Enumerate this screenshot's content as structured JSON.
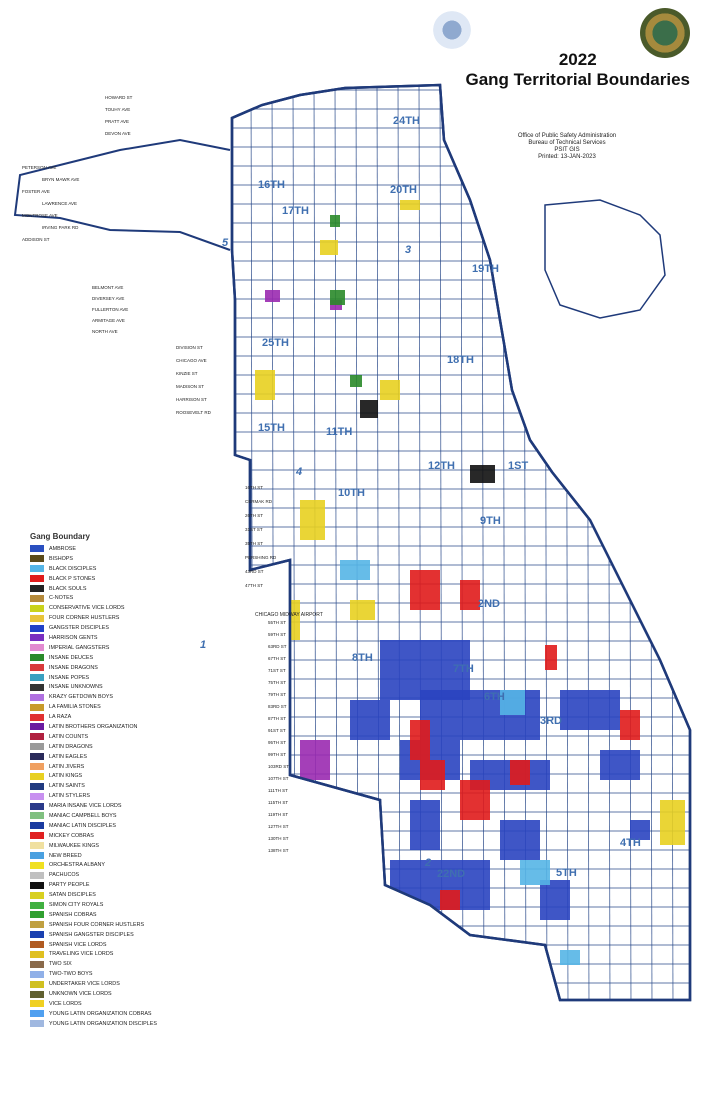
{
  "title": {
    "year": "2022",
    "name": "Gang Territorial Boundaries"
  },
  "office": [
    "Office of Public Safety Administration",
    "Bureau of Technical Services",
    "PSIT GIS",
    "Printed: 13-JAN-2023"
  ],
  "districts": [
    "24TH",
    "16TH",
    "17TH",
    "20TH",
    "19TH",
    "25TH",
    "18TH",
    "15TH",
    "11TH",
    "12TH",
    "1ST",
    "10TH",
    "9TH",
    "2ND",
    "8TH",
    "7TH",
    "6TH",
    "3RD",
    "4TH",
    "22ND",
    "5TH"
  ],
  "areas": [
    "5",
    "3",
    "1",
    "2",
    "4"
  ],
  "airport": "CHICAGO MIDWAY AIRPORT",
  "streets": [
    "HOWARD ST",
    "TOUHY AVE",
    "PRATT AVE",
    "DEVON AVE",
    "PETERSON AVE",
    "BRYN MAWR AVE",
    "FOSTER AVE",
    "LAWRENCE AVE",
    "MONTROSE AVE",
    "IRVING PARK RD",
    "ADDISON ST",
    "BELMONT AVE",
    "DIVERSEY AVE",
    "FULLERTON AVE",
    "ARMITAGE AVE",
    "NORTH AVE",
    "DIVISION ST",
    "CHICAGO AVE",
    "KINZIE ST",
    "MADISON ST",
    "HARRISON ST",
    "ROOSEVELT RD",
    "16TH ST",
    "CERMAK RD",
    "26TH ST",
    "31ST ST",
    "35TH ST",
    "PERSHING RD",
    "43RD ST",
    "47TH ST",
    "55TH ST",
    "59TH ST",
    "63RD ST",
    "67TH ST",
    "71ST ST",
    "75TH ST",
    "79TH ST",
    "83RD ST",
    "87TH ST",
    "91ST ST",
    "95TH ST",
    "99TH ST",
    "103RD ST",
    "107TH ST",
    "111TH ST",
    "115TH ST",
    "119TH ST",
    "127TH ST",
    "130TH ST",
    "138TH ST"
  ],
  "legend": {
    "title": "Gang Boundary",
    "items": [
      {
        "label": "AMBROSE",
        "color": "#2a4fc0"
      },
      {
        "label": "BISHOPS",
        "color": "#5a4a1a"
      },
      {
        "label": "BLACK DISCIPLES",
        "color": "#55b5e6"
      },
      {
        "label": "BLACK P STONES",
        "color": "#e01b1b"
      },
      {
        "label": "BLACK SOULS",
        "color": "#222222"
      },
      {
        "label": "C-NOTES",
        "color": "#b58a3a"
      },
      {
        "label": "CONSERVATIVE VICE LORDS",
        "color": "#c9d21a"
      },
      {
        "label": "FOUR CORNER HUSTLERS",
        "color": "#e8c43a"
      },
      {
        "label": "GANGSTER DISCIPLES",
        "color": "#2040c8"
      },
      {
        "label": "HARRISON GENTS",
        "color": "#7a2fc0"
      },
      {
        "label": "IMPERIAL GANGSTERS",
        "color": "#e28ad0"
      },
      {
        "label": "INSANE DEUCES",
        "color": "#2a8a2a"
      },
      {
        "label": "INSANE DRAGONS",
        "color": "#d83a3a"
      },
      {
        "label": "INSANE POPES",
        "color": "#3aa0c0"
      },
      {
        "label": "INSANE UNKNOWNS",
        "color": "#333333"
      },
      {
        "label": "KRAZY GETDOWN BOYS",
        "color": "#b070e0"
      },
      {
        "label": "LA FAMILIA STONES",
        "color": "#c89a2a"
      },
      {
        "label": "LA RAZA",
        "color": "#e03030"
      },
      {
        "label": "LATIN BROTHERS ORGANIZATION",
        "color": "#6a1aa0"
      },
      {
        "label": "LATIN COUNTS",
        "color": "#b02040"
      },
      {
        "label": "LATIN DRAGONS",
        "color": "#9a9a9a"
      },
      {
        "label": "LATIN EAGLES",
        "color": "#2a2a5a"
      },
      {
        "label": "LATIN JIVERS",
        "color": "#f0a060"
      },
      {
        "label": "LATIN KINGS",
        "color": "#e8d020"
      },
      {
        "label": "LATIN SAINTS",
        "color": "#203a80"
      },
      {
        "label": "LATIN STYLERS",
        "color": "#c890f0"
      },
      {
        "label": "MARIA INSANE VICE LORDS",
        "color": "#2a3a8a"
      },
      {
        "label": "MANIAC CAMPBELL BOYS",
        "color": "#80c080"
      },
      {
        "label": "MANIAC LATIN DISCIPLES",
        "color": "#1a3aa0"
      },
      {
        "label": "MICKEY COBRAS",
        "color": "#e02020"
      },
      {
        "label": "MILWAUKEE KINGS",
        "color": "#f0e0a0"
      },
      {
        "label": "NEW BREED",
        "color": "#4aa0e0"
      },
      {
        "label": "ORCHESTRA ALBANY",
        "color": "#f0e020"
      },
      {
        "label": "PACHUCOS",
        "color": "#c0c0c0"
      },
      {
        "label": "PARTY PEOPLE",
        "color": "#111111"
      },
      {
        "label": "SATAN DISCIPLES",
        "color": "#d8d020"
      },
      {
        "label": "SIMON CITY ROYALS",
        "color": "#40b040"
      },
      {
        "label": "SPANISH COBRAS",
        "color": "#30a030"
      },
      {
        "label": "SPANISH FOUR CORNER HUSTLERS",
        "color": "#c0a040"
      },
      {
        "label": "SPANISH GANGSTER DISCIPLES",
        "color": "#1a40b0"
      },
      {
        "label": "SPANISH VICE LORDS",
        "color": "#b05a20"
      },
      {
        "label": "TRAVELING VICE LORDS",
        "color": "#e0c020"
      },
      {
        "label": "TWO SIX",
        "color": "#8a6a4a"
      },
      {
        "label": "TWO-TWO BOYS",
        "color": "#90b0e8"
      },
      {
        "label": "UNDERTAKER VICE LORDS",
        "color": "#d0c020"
      },
      {
        "label": "UNKNOWN VICE LORDS",
        "color": "#606030"
      },
      {
        "label": "VICE LORDS",
        "color": "#f0d020"
      },
      {
        "label": "YOUNG LATIN ORGANIZATION COBRAS",
        "color": "#50a0f0"
      },
      {
        "label": "YOUNG LATIN ORGANIZATION DISCIPLES",
        "color": "#a0b8e0"
      }
    ]
  },
  "colors": {
    "boundary": "#1f3a7a",
    "district_label": "#3f6fb0",
    "title": "#111111"
  }
}
